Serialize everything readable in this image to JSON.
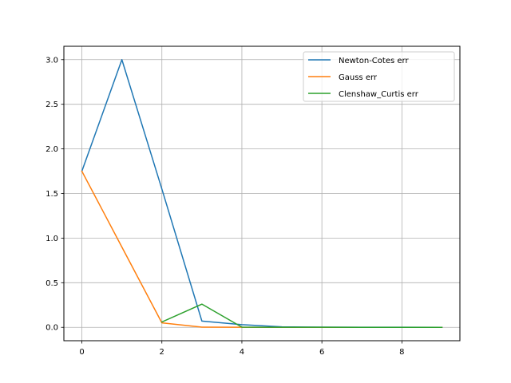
{
  "chart_data": {
    "type": "line",
    "title": "",
    "xlabel": "",
    "ylabel": "",
    "xlim": [
      -0.45,
      9.45
    ],
    "ylim": [
      -0.15,
      3.15
    ],
    "xticks": [
      0,
      2,
      4,
      6,
      8
    ],
    "xtick_labels": [
      "0",
      "2",
      "4",
      "6",
      "8"
    ],
    "yticks": [
      0.0,
      0.5,
      1.0,
      1.5,
      2.0,
      2.5,
      3.0
    ],
    "ytick_labels": [
      "0.0",
      "0.5",
      "1.0",
      "1.5",
      "2.0",
      "2.5",
      "3.0"
    ],
    "grid": true,
    "legend_position": "top-right",
    "series": [
      {
        "name": "Newton-Cotes err",
        "color": "#1f77b4",
        "x": [
          0,
          1,
          2,
          3,
          4,
          5,
          6,
          7,
          8,
          9
        ],
        "y": [
          1.75,
          3.0,
          1.55,
          0.07,
          0.03,
          0.005,
          0.002,
          0.001,
          0.0005,
          0.0002
        ]
      },
      {
        "name": "Gauss err",
        "color": "#ff7f0e",
        "x": [
          0,
          1,
          2,
          3,
          4,
          5,
          6,
          7,
          8,
          9
        ],
        "y": [
          1.75,
          0.9,
          0.05,
          0.002,
          0.0005,
          0.0001,
          5e-05,
          1e-05,
          5e-06,
          1e-06
        ]
      },
      {
        "name": "Clenshaw_Curtis err",
        "color": "#2ca02c",
        "x": [
          2,
          3,
          4,
          5,
          6,
          7,
          8,
          9
        ],
        "y": [
          0.06,
          0.26,
          0.002,
          0.001,
          0.0005,
          0.0002,
          0.0001,
          5e-05
        ]
      }
    ]
  }
}
